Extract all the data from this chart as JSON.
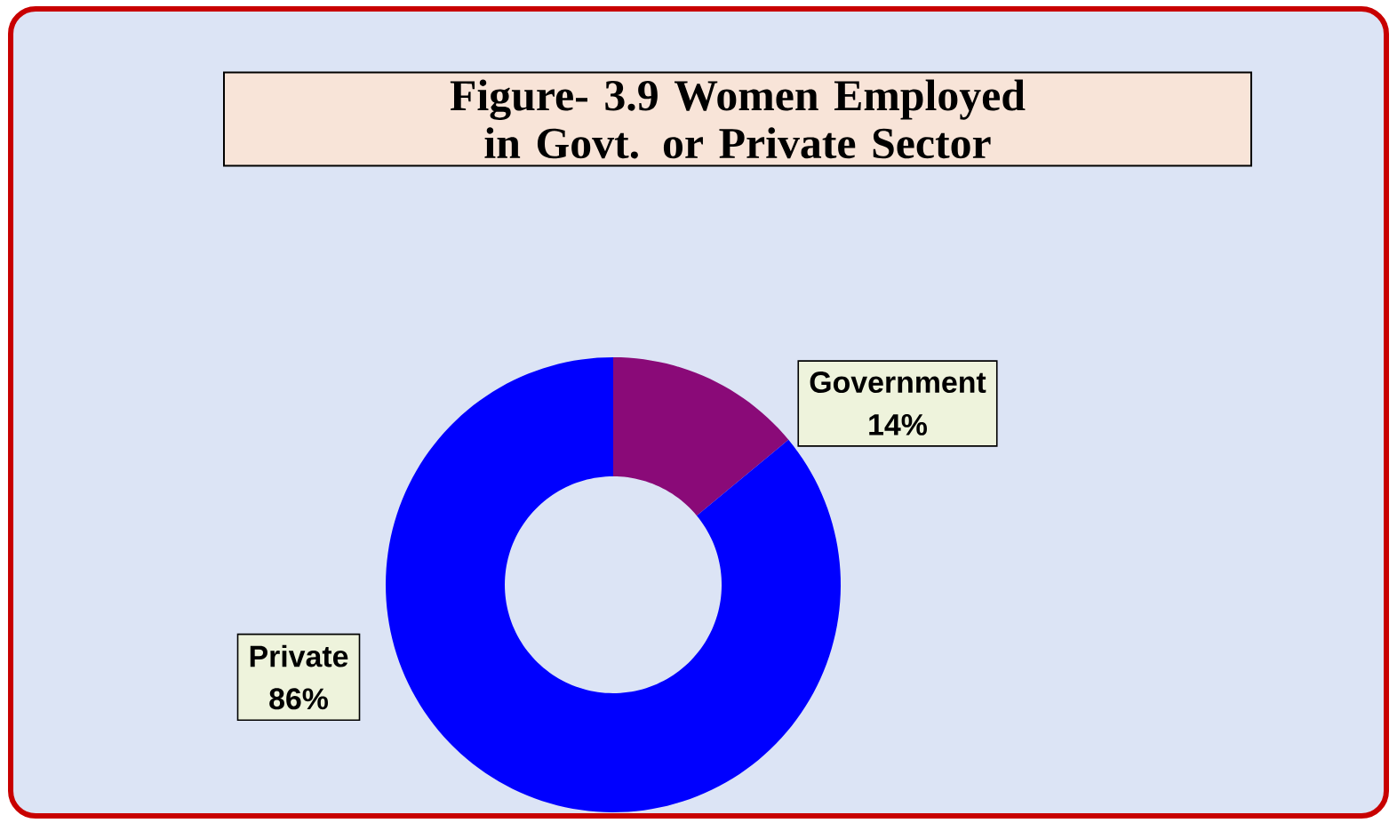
{
  "chart_data": {
    "type": "donut",
    "title": "Figure- 3.9 Women Employed in Govt. or Private Sector",
    "categories": [
      "Government",
      "Private"
    ],
    "values": [
      14,
      86
    ],
    "value_labels": [
      "14%",
      "86%"
    ],
    "colors": [
      "#8a0a78",
      "#0000ff"
    ]
  }
}
